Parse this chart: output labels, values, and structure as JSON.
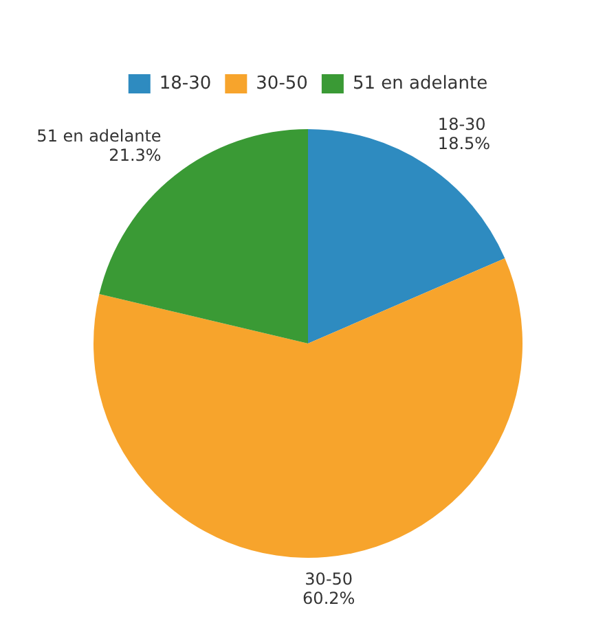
{
  "chart_data": {
    "type": "pie",
    "categories": [
      "18-30",
      "30-50",
      "51 en adelante"
    ],
    "values": [
      18.5,
      60.2,
      21.3
    ],
    "colors": [
      "#2e8bc0",
      "#f7a42c",
      "#3a9a35"
    ],
    "value_labels": [
      "18.5%",
      "60.2%",
      "21.3%"
    ],
    "legend": "top"
  }
}
